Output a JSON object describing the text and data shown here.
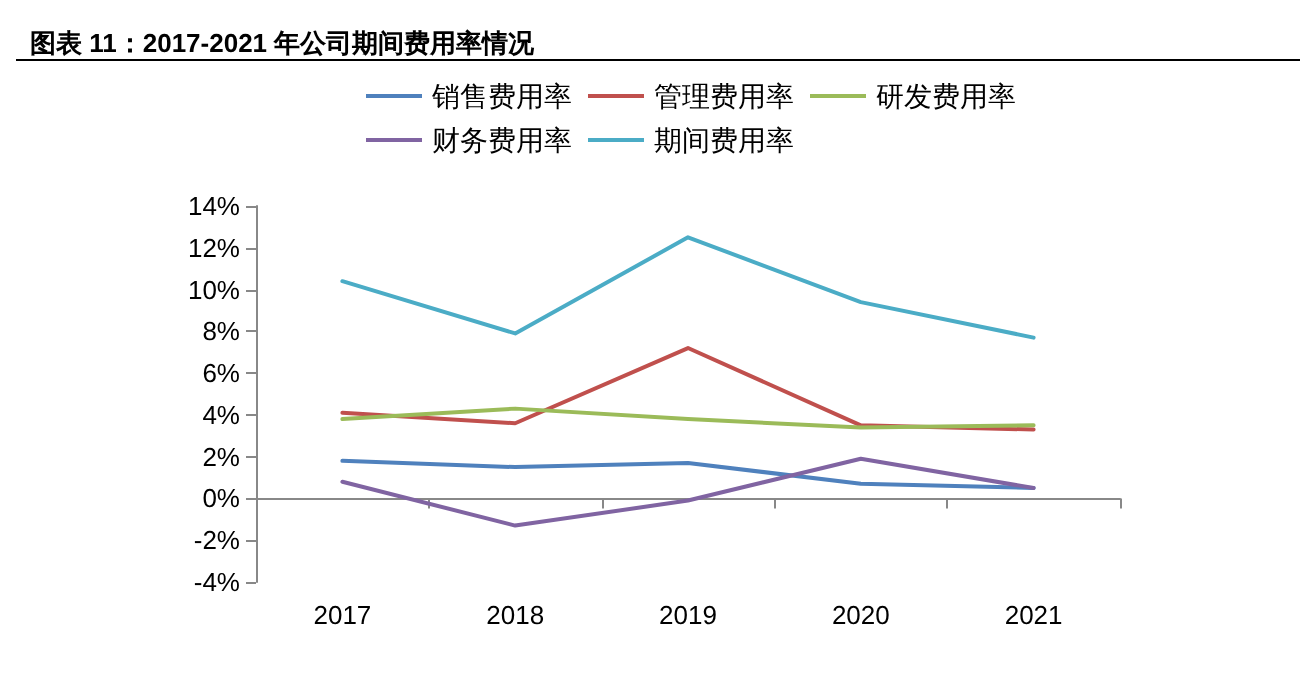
{
  "chart_data": {
    "type": "line",
    "title": "图表 11：2017-2021 年公司期间费用率情况",
    "categories": [
      "2017",
      "2018",
      "2019",
      "2020",
      "2021"
    ],
    "series": [
      {
        "name": "销售费用率",
        "color": "#4f81bd",
        "values": [
          1.8,
          1.5,
          1.7,
          0.7,
          0.5
        ]
      },
      {
        "name": "管理费用率",
        "color": "#c0504d",
        "values": [
          4.1,
          3.6,
          7.2,
          3.5,
          3.3
        ]
      },
      {
        "name": "研发费用率",
        "color": "#9bbb59",
        "values": [
          3.8,
          4.3,
          3.8,
          3.4,
          3.5
        ]
      },
      {
        "name": "财务费用率",
        "color": "#8064a2",
        "values": [
          0.8,
          -1.3,
          -0.1,
          1.9,
          0.5
        ]
      },
      {
        "name": "期间费用率",
        "color": "#4bacc6",
        "values": [
          10.4,
          7.9,
          12.5,
          9.4,
          7.7
        ]
      }
    ],
    "ylim": [
      -4,
      14
    ],
    "yticks": [
      {
        "value": -4,
        "label": "-4%"
      },
      {
        "value": -2,
        "label": "-2%"
      },
      {
        "value": 0,
        "label": "0%"
      },
      {
        "value": 2,
        "label": "2%"
      },
      {
        "value": 4,
        "label": "4%"
      },
      {
        "value": 6,
        "label": "6%"
      },
      {
        "value": 8,
        "label": "8%"
      },
      {
        "value": 10,
        "label": "10%"
      },
      {
        "value": 12,
        "label": "12%"
      },
      {
        "value": 14,
        "label": "14%"
      }
    ],
    "legend": "top",
    "marker": "none",
    "line_style": "solid"
  }
}
